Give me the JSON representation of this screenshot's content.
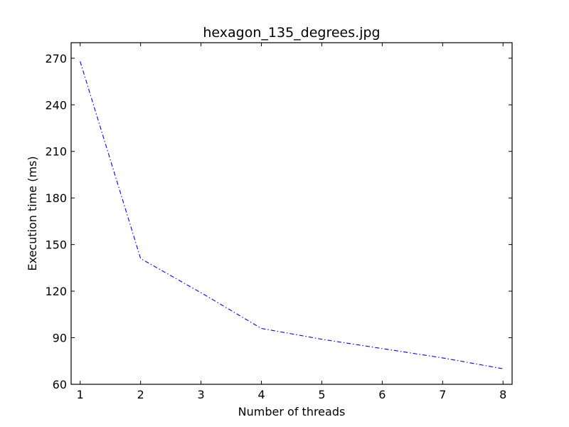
{
  "chart_data": {
    "type": "line",
    "title": "hexagon_135_degrees.jpg",
    "xlabel": "Number of threads",
    "ylabel": "Execution time (ms)",
    "xlim": [
      0.85,
      8.15
    ],
    "ylim": [
      60,
      280
    ],
    "xticks": [
      1,
      2,
      3,
      4,
      5,
      6,
      7,
      8
    ],
    "yticks": [
      60,
      90,
      120,
      150,
      180,
      210,
      240,
      270
    ],
    "grid": false,
    "line_style": "dashdot",
    "series": [
      {
        "name": "hexagon_135_degrees.jpg",
        "color": "#0000ff",
        "x": [
          1,
          2,
          3,
          4,
          5,
          6,
          7,
          8
        ],
        "y": [
          268,
          141,
          119,
          96,
          89,
          83,
          77,
          70
        ]
      }
    ]
  }
}
